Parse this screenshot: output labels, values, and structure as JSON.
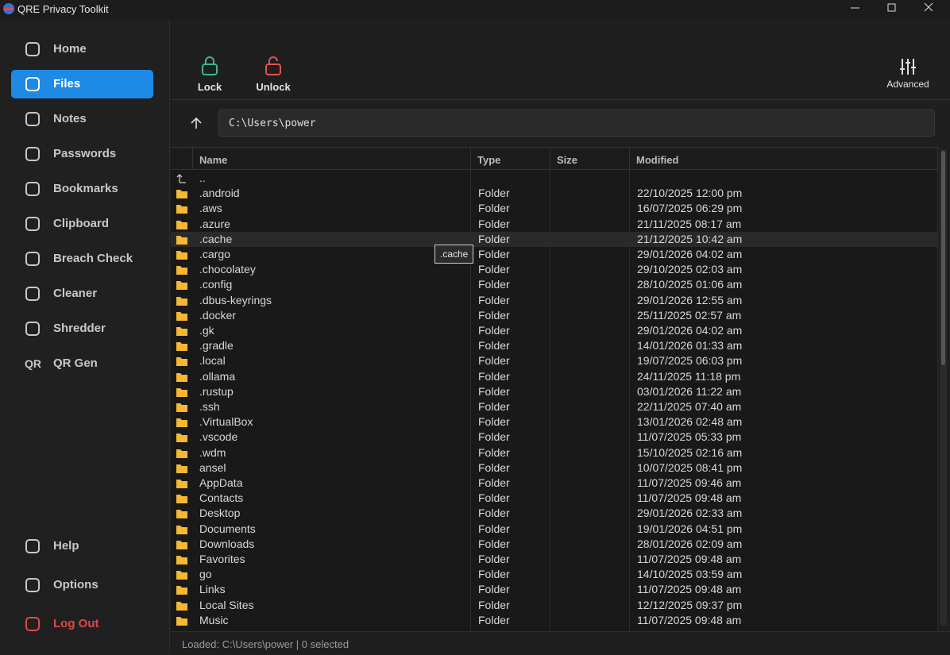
{
  "window": {
    "title": "QRE Privacy Toolkit"
  },
  "sidebar": {
    "items": [
      {
        "label": "Home"
      },
      {
        "label": "Files",
        "active": true
      },
      {
        "label": "Notes"
      },
      {
        "label": "Passwords"
      },
      {
        "label": "Bookmarks"
      },
      {
        "label": "Clipboard"
      },
      {
        "label": "Breach Check"
      },
      {
        "label": "Cleaner"
      },
      {
        "label": "Shredder"
      },
      {
        "label": "QR Gen",
        "icon_text": "QR"
      }
    ],
    "bottom": [
      {
        "label": "Help"
      },
      {
        "label": "Options"
      },
      {
        "label": "Log Out",
        "danger": true
      }
    ]
  },
  "toolbar": {
    "lock": "Lock",
    "unlock": "Unlock",
    "advanced": "Advanced"
  },
  "path": "C:\\Users\\power",
  "table": {
    "columns": [
      "Name",
      "Type",
      "Size",
      "Modified"
    ],
    "parent": "..",
    "rows": [
      {
        "name": ".android",
        "type": "Folder",
        "modified": "22/10/2025 12:00 pm"
      },
      {
        "name": ".aws",
        "type": "Folder",
        "modified": "16/07/2025 06:29 pm"
      },
      {
        "name": ".azure",
        "type": "Folder",
        "modified": "21/11/2025 08:17 am"
      },
      {
        "name": ".cache",
        "type": "Folder",
        "modified": "21/12/2025 10:42 am",
        "hover": true
      },
      {
        "name": ".cargo",
        "type": "Folder",
        "modified": "29/01/2026 04:02 am"
      },
      {
        "name": ".chocolatey",
        "type": "Folder",
        "modified": "29/10/2025 02:03 am"
      },
      {
        "name": ".config",
        "type": "Folder",
        "modified": "28/10/2025 01:06 am"
      },
      {
        "name": ".dbus-keyrings",
        "type": "Folder",
        "modified": "29/01/2026 12:55 am"
      },
      {
        "name": ".docker",
        "type": "Folder",
        "modified": "25/11/2025 02:57 am"
      },
      {
        "name": ".gk",
        "type": "Folder",
        "modified": "29/01/2026 04:02 am"
      },
      {
        "name": ".gradle",
        "type": "Folder",
        "modified": "14/01/2026 01:33 am"
      },
      {
        "name": ".local",
        "type": "Folder",
        "modified": "19/07/2025 06:03 pm"
      },
      {
        "name": ".ollama",
        "type": "Folder",
        "modified": "24/11/2025 11:18 pm"
      },
      {
        "name": ".rustup",
        "type": "Folder",
        "modified": "03/01/2026 11:22 am"
      },
      {
        "name": ".ssh",
        "type": "Folder",
        "modified": "22/11/2025 07:40 am"
      },
      {
        "name": ".VirtualBox",
        "type": "Folder",
        "modified": "13/01/2026 02:48 am"
      },
      {
        "name": ".vscode",
        "type": "Folder",
        "modified": "11/07/2025 05:33 pm"
      },
      {
        "name": ".wdm",
        "type": "Folder",
        "modified": "15/10/2025 02:16 am"
      },
      {
        "name": "ansel",
        "type": "Folder",
        "modified": "10/07/2025 08:41 pm"
      },
      {
        "name": "AppData",
        "type": "Folder",
        "modified": "11/07/2025 09:46 am"
      },
      {
        "name": "Contacts",
        "type": "Folder",
        "modified": "11/07/2025 09:48 am"
      },
      {
        "name": "Desktop",
        "type": "Folder",
        "modified": "29/01/2026 02:33 am"
      },
      {
        "name": "Documents",
        "type": "Folder",
        "modified": "19/01/2026 04:51 pm"
      },
      {
        "name": "Downloads",
        "type": "Folder",
        "modified": "28/01/2026 02:09 am"
      },
      {
        "name": "Favorites",
        "type": "Folder",
        "modified": "11/07/2025 09:48 am"
      },
      {
        "name": "go",
        "type": "Folder",
        "modified": "14/10/2025 03:59 am"
      },
      {
        "name": "Links",
        "type": "Folder",
        "modified": "11/07/2025 09:48 am"
      },
      {
        "name": "Local Sites",
        "type": "Folder",
        "modified": "12/12/2025 09:37 pm"
      },
      {
        "name": "Music",
        "type": "Folder",
        "modified": "11/07/2025 09:48 am"
      }
    ]
  },
  "tooltip": ".cache",
  "status": "Loaded: C:\\Users\\power | 0 selected"
}
